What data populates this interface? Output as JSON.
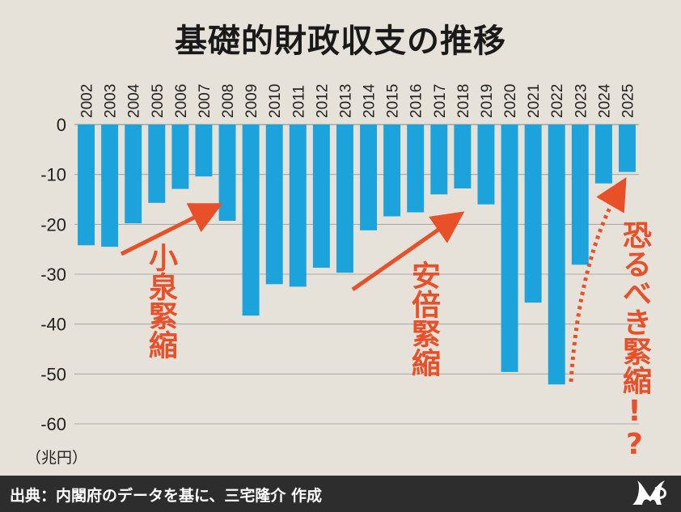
{
  "title": "基礎的財政収支の推移",
  "unit_label": "（兆円）",
  "source": "出典：内閣府のデータを基に、三宅隆介 作成",
  "annotations": {
    "koizumi": "小泉緊縮",
    "abe": "安倍緊縮",
    "future": "恐るべき緊縮!?"
  },
  "colors": {
    "bar": "#1ca3dc",
    "arrow": "#e8502a",
    "grid": "#9a9a9a"
  },
  "chart_data": {
    "type": "bar",
    "title": "基礎的財政収支の推移",
    "ylabel": "（兆円）",
    "ylim": [
      -60,
      0
    ],
    "yticks": [
      0,
      -10,
      -20,
      -30,
      -40,
      -50,
      -60
    ],
    "grid": true,
    "categories": [
      "2002",
      "2003",
      "2004",
      "2005",
      "2006",
      "2007",
      "2008",
      "2009",
      "2010",
      "2011",
      "2012",
      "2013",
      "2014",
      "2015",
      "2016",
      "2017",
      "2018",
      "2019",
      "2020",
      "2021",
      "2022",
      "2023",
      "2024",
      "2025"
    ],
    "values": [
      -24.2,
      -24.5,
      -19.8,
      -15.7,
      -12.9,
      -10.4,
      -19.3,
      -38.3,
      -32.0,
      -32.5,
      -28.7,
      -29.7,
      -21.2,
      -18.4,
      -17.6,
      -14.0,
      -12.8,
      -16.0,
      -49.6,
      -35.7,
      -52.1,
      -28.1,
      -11.8,
      -9.5
    ]
  }
}
